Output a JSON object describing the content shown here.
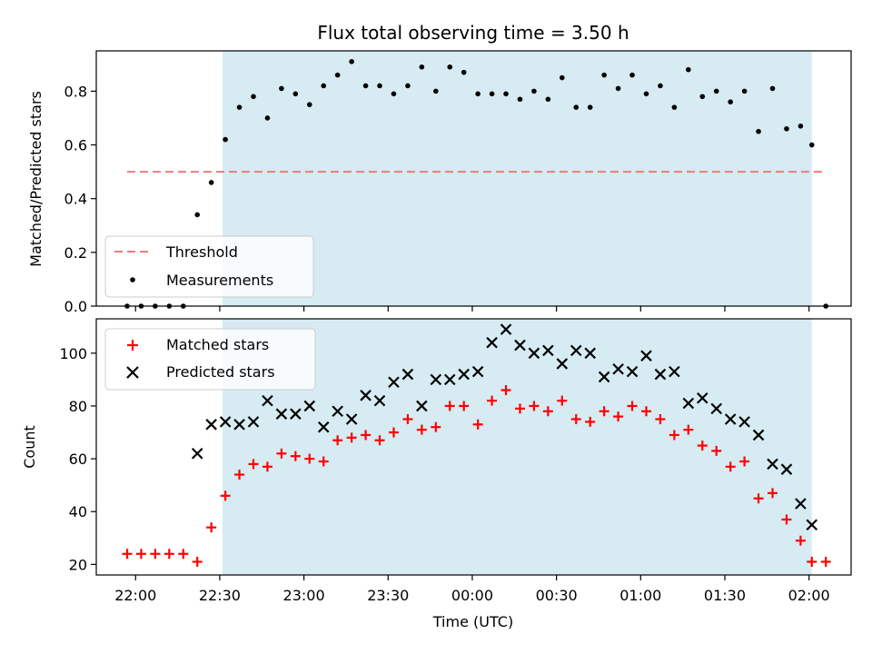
{
  "chart_data": {
    "title": "Flux total observing time = 3.50 h",
    "type": "scatter",
    "shared_x": {
      "label": "Time (UTC)",
      "unit": "minutes after 22:00",
      "ticks": [
        {
          "value": 0,
          "label": "22:00"
        },
        {
          "value": 30,
          "label": "22:30"
        },
        {
          "value": 60,
          "label": "23:00"
        },
        {
          "value": 90,
          "label": "23:30"
        },
        {
          "value": 120,
          "label": "00:00"
        },
        {
          "value": 150,
          "label": "00:30"
        },
        {
          "value": 180,
          "label": "01:00"
        },
        {
          "value": 210,
          "label": "01:30"
        },
        {
          "value": 240,
          "label": "02:00"
        }
      ],
      "xlim": [
        -14,
        255
      ]
    },
    "observing_window": {
      "start": 31,
      "end": 241
    },
    "panels": [
      {
        "ylabel": "Matched/Predicted stars",
        "ylim": [
          0,
          0.95
        ],
        "yticks": [
          {
            "value": 0.0,
            "label": "0.0"
          },
          {
            "value": 0.2,
            "label": "0.2"
          },
          {
            "value": 0.4,
            "label": "0.4"
          },
          {
            "value": 0.6,
            "label": "0.6"
          },
          {
            "value": 0.8,
            "label": "0.8"
          }
        ],
        "legend_position": "lower-left",
        "threshold": {
          "name": "Threshold",
          "value": 0.5,
          "x_range": [
            -3,
            246
          ],
          "color": "#f07b7b"
        },
        "series": [
          {
            "name": "Measurements",
            "marker": "dot",
            "color": "#000000",
            "x": [
              -3,
              2,
              7,
              12,
              17,
              22,
              27,
              32,
              37,
              42,
              47,
              52,
              57,
              62,
              67,
              72,
              77,
              82,
              87,
              92,
              97,
              102,
              107,
              112,
              117,
              122,
              127,
              132,
              137,
              142,
              147,
              152,
              157,
              162,
              167,
              172,
              177,
              182,
              187,
              192,
              197,
              202,
              207,
              212,
              217,
              222,
              227,
              232,
              237,
              241,
              246
            ],
            "y": [
              0,
              0,
              0,
              0,
              0,
              0.34,
              0.46,
              0.62,
              0.74,
              0.78,
              0.7,
              0.81,
              0.79,
              0.75,
              0.82,
              0.86,
              0.91,
              0.82,
              0.82,
              0.79,
              0.82,
              0.89,
              0.8,
              0.89,
              0.87,
              0.79,
              0.79,
              0.79,
              0.77,
              0.8,
              0.77,
              0.85,
              0.74,
              0.74,
              0.86,
              0.81,
              0.86,
              0.79,
              0.82,
              0.74,
              0.88,
              0.78,
              0.8,
              0.76,
              0.8,
              0.65,
              0.81,
              0.66,
              0.67,
              0.6,
              0
            ]
          }
        ]
      },
      {
        "ylabel": "Count",
        "ylim": [
          16,
          113
        ],
        "yticks": [
          {
            "value": 20,
            "label": "20"
          },
          {
            "value": 40,
            "label": "40"
          },
          {
            "value": 60,
            "label": "60"
          },
          {
            "value": 80,
            "label": "80"
          },
          {
            "value": 100,
            "label": "100"
          }
        ],
        "legend_position": "upper-left",
        "series": [
          {
            "name": "Matched stars",
            "marker": "plus",
            "color": "#ff0000",
            "x": [
              -3,
              2,
              7,
              12,
              17,
              22,
              27,
              32,
              37,
              42,
              47,
              52,
              57,
              62,
              67,
              72,
              77,
              82,
              87,
              92,
              97,
              102,
              107,
              112,
              117,
              122,
              127,
              132,
              137,
              142,
              147,
              152,
              157,
              162,
              167,
              172,
              177,
              182,
              187,
              192,
              197,
              202,
              207,
              212,
              217,
              222,
              227,
              232,
              237,
              241,
              246
            ],
            "y": [
              24,
              24,
              24,
              24,
              24,
              21,
              34,
              46,
              54,
              58,
              57,
              62,
              61,
              60,
              59,
              67,
              68,
              69,
              67,
              70,
              75,
              71,
              72,
              80,
              80,
              73,
              82,
              86,
              79,
              80,
              78,
              82,
              75,
              74,
              78,
              76,
              80,
              78,
              75,
              69,
              71,
              65,
              63,
              57,
              59,
              45,
              47,
              37,
              29,
              21,
              21
            ]
          },
          {
            "name": "Predicted stars",
            "marker": "x",
            "color": "#000000",
            "x": [
              22,
              27,
              32,
              37,
              42,
              47,
              52,
              57,
              62,
              67,
              72,
              77,
              82,
              87,
              92,
              97,
              102,
              107,
              112,
              117,
              122,
              127,
              132,
              137,
              142,
              147,
              152,
              157,
              162,
              167,
              172,
              177,
              182,
              187,
              192,
              197,
              202,
              207,
              212,
              217,
              222,
              227,
              232,
              237,
              241
            ],
            "y": [
              62,
              73,
              74,
              73,
              74,
              82,
              77,
              77,
              80,
              72,
              78,
              75,
              84,
              82,
              89,
              92,
              80,
              90,
              90,
              92,
              93,
              104,
              109,
              103,
              100,
              101,
              96,
              101,
              100,
              91,
              94,
              93,
              99,
              92,
              93,
              81,
              83,
              79,
              75,
              74,
              69,
              58,
              56,
              43,
              35
            ]
          }
        ]
      }
    ]
  }
}
